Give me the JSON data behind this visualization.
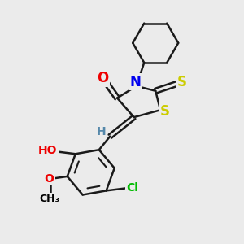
{
  "background_color": "#ebebeb",
  "atom_colors": {
    "C": "#000000",
    "N": "#0000ee",
    "O": "#ee0000",
    "S": "#cccc00",
    "Cl": "#00bb00",
    "H": "#5588aa"
  },
  "bond_color": "#1a1a1a",
  "bond_width": 1.8,
  "font_size": 12,
  "small_font_size": 10
}
